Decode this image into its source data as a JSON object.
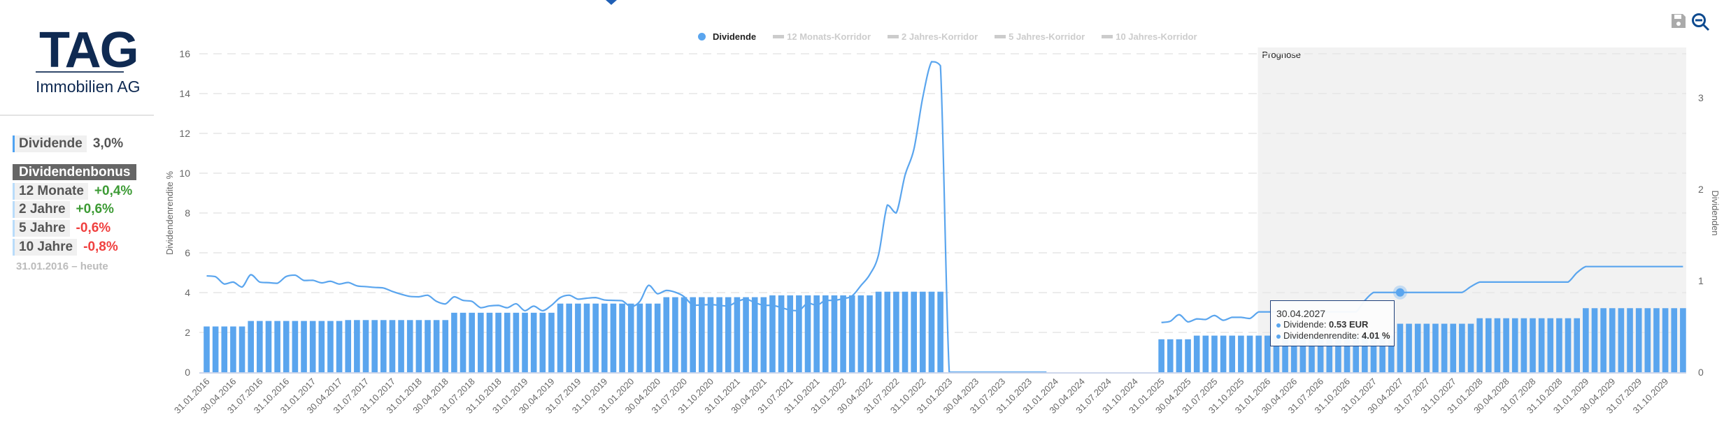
{
  "logo": {
    "name": "TAG",
    "subtitle": "Immobilien AG"
  },
  "sidebar": {
    "dividend_label": "Dividende",
    "dividend_value": "3,0%",
    "bonus_title": "Dividendenbonus",
    "bonus_rows": [
      {
        "label": "12 Monate",
        "value": "+0,4%"
      },
      {
        "label": "2 Jahre",
        "value": "+0,6%"
      },
      {
        "label": "5 Jahre",
        "value": "-0,6%"
      },
      {
        "label": "10 Jahre",
        "value": "-0,8%"
      }
    ],
    "period": "31.01.2016 – heute"
  },
  "toolbar": {
    "save_icon": "floppy-disk-icon",
    "zoom_out_icon": "zoom-out-icon"
  },
  "legend": [
    "Dividende",
    "12 Monats-Korridor",
    "2 Jahres-Korridor",
    "5 Jahres-Korridor",
    "10 Jahres-Korridor"
  ],
  "tooltip": {
    "date": "30.04.2027",
    "dividend_label": "Dividende: ",
    "dividend_value": "0.53 EUR",
    "yield_label": "Dividendenrendite: ",
    "yield_value": "4.01 %"
  },
  "colors": {
    "series": "#5aa5ee",
    "positive": "#3d9b35",
    "negative": "#f0403f",
    "forecast_bg": "#f2f2f2"
  },
  "chart_data": {
    "type": "bar+line",
    "forecast_label": "Prognose",
    "forecast_start_index": 118.9,
    "highlight_index": 135,
    "y_left": {
      "label": "Dividendenrendite %",
      "ticks": [
        0,
        2,
        4,
        6,
        8,
        10,
        12,
        14,
        16
      ],
      "range": [
        0,
        16
      ]
    },
    "y_right": {
      "label": "Dividenden",
      "ticks": [
        0,
        1,
        2,
        3
      ],
      "range": [
        0,
        3.48
      ]
    },
    "x_labels": [
      "31.01.2016",
      "30.04.2016",
      "31.07.2016",
      "31.10.2016",
      "31.01.2017",
      "30.04.2017",
      "31.07.2017",
      "31.10.2017",
      "31.01.2018",
      "30.04.2018",
      "31.07.2018",
      "31.10.2018",
      "31.01.2019",
      "30.04.2019",
      "31.07.2019",
      "31.10.2019",
      "31.01.2020",
      "30.04.2020",
      "31.07.2020",
      "31.10.2020",
      "31.01.2021",
      "30.04.2021",
      "31.07.2021",
      "31.10.2021",
      "31.01.2022",
      "30.04.2022",
      "31.07.2022",
      "31.10.2022",
      "31.01.2023",
      "30.04.2023",
      "31.07.2023",
      "31.10.2023",
      "31.01.2024",
      "30.04.2024",
      "31.07.2024",
      "31.10.2024",
      "31.01.2025",
      "30.04.2025",
      "31.07.2025",
      "31.10.2025",
      "31.01.2026",
      "30.04.2026",
      "31.07.2026",
      "31.10.2026",
      "31.01.2027",
      "30.04.2027",
      "31.07.2027",
      "31.10.2027",
      "31.01.2028",
      "30.04.2028",
      "31.07.2028",
      "31.10.2028",
      "31.01.2029",
      "30.04.2029",
      "31.07.2029",
      "31.10.2029"
    ],
    "series": [
      {
        "name": "Dividende",
        "type": "bar",
        "axis": "right",
        "values": [
          0.5,
          0.5,
          0.5,
          0.5,
          0.5,
          0.56,
          0.56,
          0.56,
          0.56,
          0.56,
          0.56,
          0.56,
          0.56,
          0.56,
          0.56,
          0.56,
          0.57,
          0.57,
          0.57,
          0.57,
          0.57,
          0.57,
          0.57,
          0.57,
          0.57,
          0.57,
          0.57,
          0.57,
          0.65,
          0.65,
          0.65,
          0.65,
          0.65,
          0.65,
          0.65,
          0.65,
          0.65,
          0.65,
          0.65,
          0.65,
          0.75,
          0.75,
          0.75,
          0.75,
          0.75,
          0.75,
          0.75,
          0.75,
          0.75,
          0.75,
          0.75,
          0.75,
          0.82,
          0.82,
          0.82,
          0.82,
          0.82,
          0.82,
          0.82,
          0.82,
          0.82,
          0.82,
          0.82,
          0.82,
          0.84,
          0.84,
          0.84,
          0.84,
          0.84,
          0.84,
          0.84,
          0.84,
          0.84,
          0.84,
          0.84,
          0.84,
          0.88,
          0.88,
          0.88,
          0.88,
          0.88,
          0.88,
          0.88,
          0.88,
          0,
          0,
          0,
          0,
          0,
          0,
          0,
          0,
          0,
          0,
          0,
          0,
          0,
          0,
          0,
          0,
          0,
          0,
          0,
          0,
          0,
          0,
          0,
          0,
          0.36,
          0.36,
          0.36,
          0.36,
          0.4,
          0.4,
          0.4,
          0.4,
          0.4,
          0.4,
          0.4,
          0.4,
          0.4,
          0.4,
          0.4,
          0.4,
          0.4,
          0.4,
          0.4,
          0.4,
          0.4,
          0.4,
          0.4,
          0.4,
          0.4,
          0.4,
          0.4,
          0.53,
          0.53,
          0.53,
          0.53,
          0.53,
          0.53,
          0.53,
          0.53,
          0.53,
          0.59,
          0.59,
          0.59,
          0.59,
          0.59,
          0.59,
          0.59,
          0.59,
          0.59,
          0.59,
          0.59,
          0.59,
          0.7,
          0.7,
          0.7,
          0.7,
          0.7,
          0.7,
          0.7,
          0.7,
          0.7,
          0.7,
          0.7,
          0.7
        ]
      },
      {
        "name": "Dividendenrendite",
        "type": "line",
        "axis": "left",
        "values": [
          4.84,
          4.8,
          4.43,
          4.53,
          4.28,
          4.9,
          4.53,
          4.5,
          4.47,
          4.81,
          4.88,
          4.61,
          4.62,
          4.49,
          4.57,
          4.43,
          4.51,
          4.34,
          4.3,
          4.26,
          4.23,
          4.06,
          3.92,
          3.81,
          3.79,
          3.87,
          3.56,
          3.43,
          3.79,
          3.61,
          3.56,
          3.24,
          3.33,
          3.36,
          3.24,
          3.44,
          3.09,
          3.32,
          3.09,
          3.36,
          3.75,
          3.87,
          3.67,
          3.72,
          3.75,
          3.63,
          3.61,
          3.59,
          3.3,
          3.56,
          4.37,
          3.94,
          4.11,
          4.02,
          3.8,
          3.36,
          3.38,
          3.4,
          3.36,
          3.32,
          3.55,
          3.67,
          3.5,
          3.36,
          3.36,
          3.25,
          3.12,
          3.09,
          3.48,
          3.36,
          3.61,
          3.61,
          3.7,
          3.83,
          4.35,
          4.9,
          5.9,
          8.4,
          8.0,
          9.9,
          11.2,
          13.8,
          15.6,
          15.4,
          0,
          0,
          0,
          0,
          0,
          0,
          0,
          0,
          0,
          0,
          0,
          0,
          null,
          null,
          null,
          null,
          null,
          null,
          null,
          null,
          null,
          null,
          null,
          null,
          2.5,
          2.56,
          2.89,
          2.53,
          2.68,
          2.65,
          2.85,
          2.61,
          2.76,
          2.76,
          2.7,
          3.03,
          3.03,
          3.03,
          3.03,
          3.03,
          3.03,
          3.03,
          3.03,
          3.03,
          3.03,
          3.03,
          3.03,
          3.6,
          4.01,
          4.01,
          4.01,
          4.01,
          4.01,
          4.01,
          4.01,
          4.01,
          4.01,
          4.01,
          4.01,
          4.3,
          4.53,
          4.53,
          4.53,
          4.53,
          4.53,
          4.53,
          4.53,
          4.53,
          4.53,
          4.53,
          4.53,
          5.0,
          5.31,
          5.31,
          5.31,
          5.31,
          5.31,
          5.31,
          5.31,
          5.31,
          5.31,
          5.31,
          5.31,
          5.31
        ]
      }
    ]
  }
}
